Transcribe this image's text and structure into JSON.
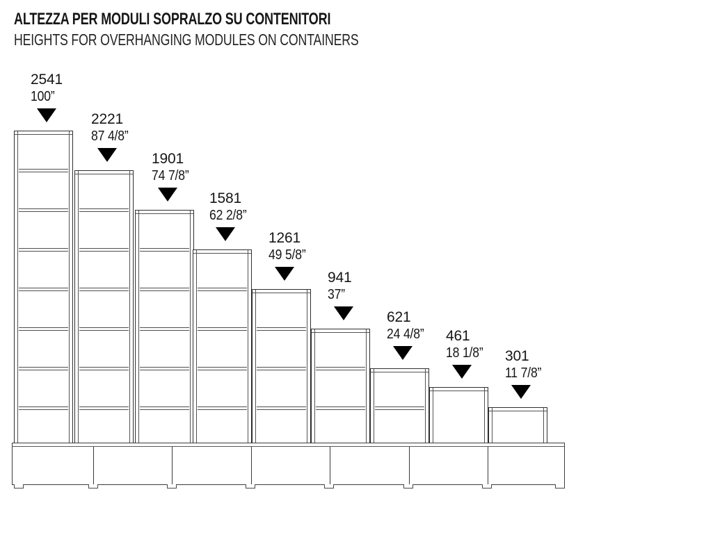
{
  "title": {
    "line1": "ALTEZZA PER MODULI SOPRALZO SU CONTENITORI",
    "line2": "HEIGHTS FOR OVERHANGING MODULES ON CONTAINERS"
  },
  "diagram": {
    "type": "furniture-height-elevation",
    "modules": [
      {
        "height_mm": "2541",
        "height_in": "100”"
      },
      {
        "height_mm": "2221",
        "height_in": "87 4/8”"
      },
      {
        "height_mm": "1901",
        "height_in": "74 7/8”"
      },
      {
        "height_mm": "1581",
        "height_in": "62 2/8”"
      },
      {
        "height_mm": "1261",
        "height_in": "49 5/8”"
      },
      {
        "height_mm": "941",
        "height_in": "37”"
      },
      {
        "height_mm": "621",
        "height_in": "24 4/8”"
      },
      {
        "height_mm": "461",
        "height_in": "18 1/8”"
      },
      {
        "height_mm": "301",
        "height_in": "11 7/8”"
      }
    ],
    "marker_icon": "filled-down-triangle",
    "base_container_count": 7,
    "colors": {
      "outer_line": "#2e2e2e",
      "inner_line": "#525252",
      "base_line": "#3a3a3a",
      "marker": "#000000",
      "text": "#161616",
      "background": "#ffffff"
    }
  }
}
